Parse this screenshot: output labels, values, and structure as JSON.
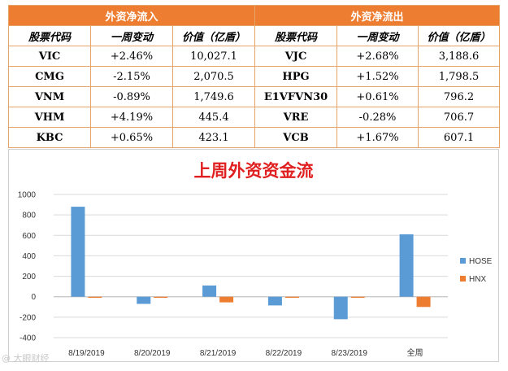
{
  "table": {
    "inflow_header": "外资净流入",
    "outflow_header": "外资净流出",
    "col_code": "股票代码",
    "col_change": "一周变动",
    "col_value": "价值（亿盾）",
    "inflow": [
      {
        "code": "VIC",
        "change": "+2.46%",
        "dir": "pos",
        "value": "10,027.1"
      },
      {
        "code": "CMG",
        "change": "-2.15%",
        "dir": "neg",
        "value": "2,070.5"
      },
      {
        "code": "VNM",
        "change": "-0.89%",
        "dir": "neg",
        "value": "1,749.6"
      },
      {
        "code": "VHM",
        "change": "+4.19%",
        "dir": "pos",
        "value": "445.4"
      },
      {
        "code": "KBC",
        "change": "+0.65%",
        "dir": "pos",
        "value": "423.1"
      }
    ],
    "outflow": [
      {
        "code": "VJC",
        "change": "+2.68%",
        "dir": "pos",
        "value": "3,188.6"
      },
      {
        "code": "HPG",
        "change": "+1.52%",
        "dir": "pos",
        "value": "1,798.5"
      },
      {
        "code": "E1VFVN30",
        "change": "+0.61%",
        "dir": "pos",
        "value": "796.2"
      },
      {
        "code": "VRE",
        "change": "-0.28%",
        "dir": "neg",
        "value": "706.7"
      },
      {
        "code": "VCB",
        "change": "+1.67%",
        "dir": "pos",
        "value": "607.1"
      }
    ]
  },
  "chart_data": {
    "type": "bar",
    "title": "上周外资资金流",
    "categories": [
      "8/19/2019",
      "8/20/2019",
      "8/21/2019",
      "8/22/2019",
      "8/23/2019",
      "全周"
    ],
    "series": [
      {
        "name": "HOSE",
        "color": "#5b9bd5",
        "values": [
          880,
          -70,
          110,
          -85,
          -220,
          610
        ]
      },
      {
        "name": "HNX",
        "color": "#ed7d31",
        "values": [
          -10,
          -10,
          -55,
          -10,
          -10,
          -100
        ]
      }
    ],
    "ylim": [
      -400,
      1000
    ],
    "yticks": [
      -400,
      -200,
      0,
      200,
      400,
      600,
      800,
      1000
    ],
    "grid": true,
    "legend": "right",
    "xlabel": "",
    "ylabel": ""
  },
  "colors": {
    "accent": "#ed7d31",
    "title_red": "#e02020",
    "positive": "#e02020",
    "negative": "#2a9a4a"
  },
  "watermark": "@ 大眼财经"
}
